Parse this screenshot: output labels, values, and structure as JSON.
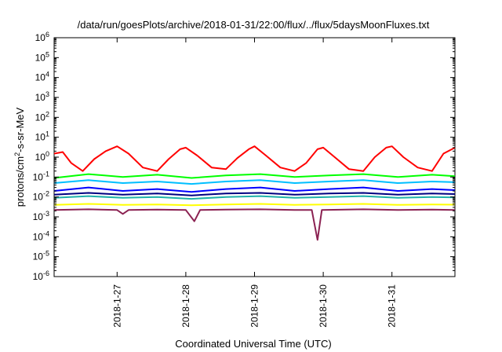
{
  "chart_data": {
    "type": "line",
    "title": "/data/run/goesPlots/archive/2018-01-31/22:00/flux/../flux/5daysMoonFluxes.txt",
    "xlabel": "Coordinated Universal Time (UTC)",
    "ylabel": {
      "base": "protons/cm",
      "sup": "2",
      "tail": "-s-sr-MeV"
    },
    "y_scale": "log",
    "ylim": [
      1e-06,
      1000000.0
    ],
    "y_ticks": [
      {
        "base": "10",
        "exp": "6"
      },
      {
        "base": "10",
        "exp": "5"
      },
      {
        "base": "10",
        "exp": "4"
      },
      {
        "base": "10",
        "exp": "3"
      },
      {
        "base": "10",
        "exp": "2"
      },
      {
        "base": "10",
        "exp": "1"
      },
      {
        "base": "10",
        "exp": "0"
      },
      {
        "base": "10",
        "exp": "-1"
      },
      {
        "base": "10",
        "exp": "-2"
      },
      {
        "base": "10",
        "exp": "-3"
      },
      {
        "base": "10",
        "exp": "-4"
      },
      {
        "base": "10",
        "exp": "-5"
      },
      {
        "base": "10",
        "exp": "-6"
      }
    ],
    "xlim": [
      "2018-01-26T02:00",
      "2018-01-31T22:00"
    ],
    "x_ticks": [
      {
        "label": "2018-1-27",
        "x": "2018-01-27T00:00"
      },
      {
        "label": "2018-1-28",
        "x": "2018-01-28T00:00"
      },
      {
        "label": "2018-1-29",
        "x": "2018-01-29T00:00"
      },
      {
        "label": "2018-1-30",
        "x": "2018-01-30T00:00"
      },
      {
        "label": "2018-1-31",
        "x": "2018-01-31T00:00"
      }
    ],
    "grid": false,
    "legend": "none",
    "series": [
      {
        "color": "#ff0000",
        "x": [
          "2018-01-26T02:00",
          "2018-01-26T05:00",
          "2018-01-26T08:00",
          "2018-01-26T12:00",
          "2018-01-26T16:00",
          "2018-01-26T20:00",
          "2018-01-27T00:00",
          "2018-01-27T04:00",
          "2018-01-27T09:00",
          "2018-01-27T14:00",
          "2018-01-27T18:00",
          "2018-01-27T22:00",
          "2018-01-28T00:00",
          "2018-01-28T04:00",
          "2018-01-28T09:00",
          "2018-01-28T14:00",
          "2018-01-28T18:00",
          "2018-01-28T22:00",
          "2018-01-29T00:00",
          "2018-01-29T04:00",
          "2018-01-29T09:00",
          "2018-01-29T14:00",
          "2018-01-29T18:00",
          "2018-01-29T22:00",
          "2018-01-30T00:00",
          "2018-01-30T04:00",
          "2018-01-30T09:00",
          "2018-01-30T14:00",
          "2018-01-30T18:00",
          "2018-01-30T22:00",
          "2018-01-31T00:00",
          "2018-01-31T04:00",
          "2018-01-31T09:00",
          "2018-01-31T14:00",
          "2018-01-31T18:00",
          "2018-01-31T22:00"
        ],
        "y": [
          1.5,
          1.8,
          0.5,
          0.2,
          0.8,
          2.0,
          3.5,
          1.5,
          0.3,
          0.2,
          0.8,
          2.5,
          3.0,
          1.2,
          0.3,
          0.25,
          0.9,
          2.5,
          3.5,
          1.2,
          0.3,
          0.2,
          0.5,
          2.5,
          3.0,
          1.0,
          0.25,
          0.2,
          1.0,
          3.0,
          3.5,
          1.0,
          0.3,
          0.2,
          1.5,
          3.0
        ]
      },
      {
        "color": "#00ff00",
        "x": [
          "2018-01-26T02:00",
          "2018-01-26T14:00",
          "2018-01-27T02:00",
          "2018-01-27T14:00",
          "2018-01-28T02:00",
          "2018-01-28T14:00",
          "2018-01-29T02:00",
          "2018-01-29T14:00",
          "2018-01-30T02:00",
          "2018-01-30T14:00",
          "2018-01-31T02:00",
          "2018-01-31T14:00",
          "2018-01-31T22:00"
        ],
        "y": [
          0.09,
          0.14,
          0.1,
          0.13,
          0.09,
          0.12,
          0.14,
          0.1,
          0.12,
          0.14,
          0.1,
          0.13,
          0.11
        ]
      },
      {
        "color": "#00bfff",
        "x": [
          "2018-01-26T02:00",
          "2018-01-26T14:00",
          "2018-01-27T02:00",
          "2018-01-27T14:00",
          "2018-01-28T02:00",
          "2018-01-28T14:00",
          "2018-01-29T02:00",
          "2018-01-29T14:00",
          "2018-01-30T02:00",
          "2018-01-30T14:00",
          "2018-01-31T02:00",
          "2018-01-31T14:00",
          "2018-01-31T22:00"
        ],
        "y": [
          0.05,
          0.07,
          0.05,
          0.06,
          0.045,
          0.06,
          0.07,
          0.05,
          0.06,
          0.07,
          0.05,
          0.06,
          0.055
        ]
      },
      {
        "color": "#0000ff",
        "x": [
          "2018-01-26T02:00",
          "2018-01-26T14:00",
          "2018-01-27T02:00",
          "2018-01-27T14:00",
          "2018-01-28T02:00",
          "2018-01-28T14:00",
          "2018-01-29T02:00",
          "2018-01-29T14:00",
          "2018-01-30T02:00",
          "2018-01-30T14:00",
          "2018-01-31T02:00",
          "2018-01-31T14:00",
          "2018-01-31T22:00"
        ],
        "y": [
          0.02,
          0.03,
          0.02,
          0.025,
          0.018,
          0.025,
          0.03,
          0.02,
          0.025,
          0.03,
          0.02,
          0.025,
          0.022
        ]
      },
      {
        "color": "#000080",
        "x": [
          "2018-01-26T02:00",
          "2018-01-26T14:00",
          "2018-01-27T02:00",
          "2018-01-27T14:00",
          "2018-01-28T02:00",
          "2018-01-28T14:00",
          "2018-01-29T02:00",
          "2018-01-29T14:00",
          "2018-01-30T02:00",
          "2018-01-30T14:00",
          "2018-01-31T02:00",
          "2018-01-31T14:00",
          "2018-01-31T22:00"
        ],
        "y": [
          0.013,
          0.016,
          0.013,
          0.015,
          0.012,
          0.015,
          0.016,
          0.013,
          0.015,
          0.016,
          0.013,
          0.015,
          0.014
        ]
      },
      {
        "color": "#20b2aa",
        "x": [
          "2018-01-26T02:00",
          "2018-01-26T14:00",
          "2018-01-27T02:00",
          "2018-01-27T14:00",
          "2018-01-28T02:00",
          "2018-01-28T14:00",
          "2018-01-29T02:00",
          "2018-01-29T14:00",
          "2018-01-30T02:00",
          "2018-01-30T14:00",
          "2018-01-31T02:00",
          "2018-01-31T14:00",
          "2018-01-31T22:00"
        ],
        "y": [
          0.009,
          0.011,
          0.009,
          0.01,
          0.008,
          0.01,
          0.011,
          0.009,
          0.01,
          0.011,
          0.009,
          0.01,
          0.0095
        ]
      },
      {
        "color": "#ffff00",
        "x": [
          "2018-01-26T02:00",
          "2018-01-26T14:00",
          "2018-01-27T02:00",
          "2018-01-27T14:00",
          "2018-01-28T02:00",
          "2018-01-28T14:00",
          "2018-01-29T02:00",
          "2018-01-29T14:00",
          "2018-01-30T02:00",
          "2018-01-30T14:00",
          "2018-01-31T02:00",
          "2018-01-31T14:00",
          "2018-01-31T22:00"
        ],
        "y": [
          0.004,
          0.0045,
          0.004,
          0.0042,
          0.0038,
          0.0042,
          0.0045,
          0.004,
          0.0042,
          0.0045,
          0.004,
          0.0042,
          0.0041
        ]
      },
      {
        "color": "#8b2252",
        "x": [
          "2018-01-26T02:00",
          "2018-01-26T14:00",
          "2018-01-27T00:00",
          "2018-01-27T02:00",
          "2018-01-27T04:00",
          "2018-01-27T14:00",
          "2018-01-28T00:00",
          "2018-01-28T03:00",
          "2018-01-28T05:00",
          "2018-01-28T14:00",
          "2018-01-29T02:00",
          "2018-01-29T14:00",
          "2018-01-29T20:00",
          "2018-01-29T22:00",
          "2018-01-29T23:30",
          "2018-01-30T14:00",
          "2018-01-31T02:00",
          "2018-01-31T14:00",
          "2018-01-31T22:00"
        ],
        "y": [
          0.0022,
          0.0024,
          0.0022,
          0.0014,
          0.0022,
          0.0023,
          0.0022,
          0.0006,
          0.0022,
          0.0023,
          0.0024,
          0.0022,
          0.0022,
          7e-05,
          0.0022,
          0.0024,
          0.0022,
          0.0023,
          0.0022
        ]
      }
    ]
  }
}
